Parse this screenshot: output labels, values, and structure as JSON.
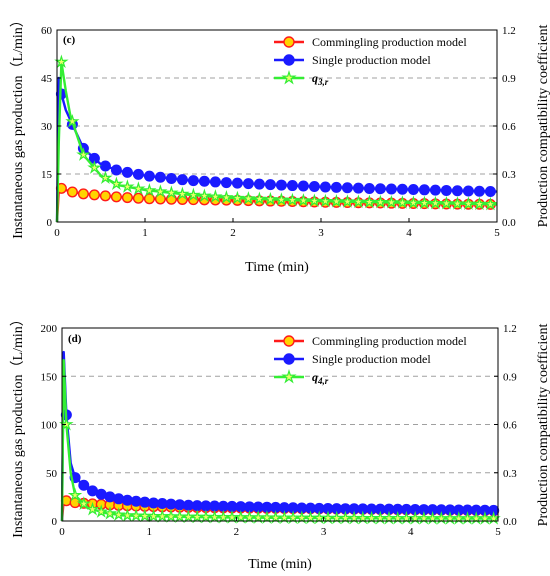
{
  "colors": {
    "commingling": "#ff1a1a",
    "commingling_fill": "#ffd400",
    "single": "#1a1aff",
    "ratio": "#33ee33",
    "ratio_fill": "#eaff6a",
    "grid": "#a0a0a0"
  },
  "chart_data": [
    {
      "type": "line",
      "panel_label": "(c)",
      "xlabel": "Time (min)",
      "ylabel": "Instantaneous gas production（L/min）",
      "y2label": "Production compatibility coefficient",
      "xlim": [
        0,
        5
      ],
      "ylim": [
        0,
        60
      ],
      "y2lim": [
        0,
        1.2
      ],
      "x_ticks": [
        "0",
        "1",
        "2",
        "3",
        "4",
        "5"
      ],
      "y_ticks": [
        "0",
        "15",
        "30",
        "45",
        "60"
      ],
      "y2_ticks": [
        "0.0",
        "0.3",
        "0.6",
        "0.9",
        "1.2"
      ],
      "grid": "horizontal dashed at 15, 30, 45",
      "legend_position": "top-right",
      "series": [
        {
          "name": "Commingling production model",
          "axis": "left",
          "marker": "circle",
          "x": [
            0,
            0.02,
            0.05,
            0.1,
            0.15,
            0.3,
            0.5,
            0.7,
            1,
            1.5,
            2,
            2.5,
            3,
            3.5,
            4,
            4.5,
            5
          ],
          "y": [
            0,
            10,
            10.5,
            10,
            9.5,
            8.8,
            8.3,
            7.8,
            7.3,
            7,
            6.8,
            6.5,
            6.2,
            6,
            5.8,
            5.6,
            5.5
          ]
        },
        {
          "name": "Single production model",
          "axis": "left",
          "marker": "circle",
          "x": [
            0,
            0.02,
            0.05,
            0.1,
            0.15,
            0.3,
            0.5,
            0.7,
            1,
            1.5,
            2,
            2.5,
            3,
            3.5,
            4,
            4.5,
            5
          ],
          "y": [
            0,
            45,
            40,
            35,
            32,
            23,
            18,
            16,
            14.5,
            13,
            12.2,
            11.6,
            11,
            10.5,
            10.2,
            9.8,
            9.5
          ]
        },
        {
          "name": "q3,r",
          "name_parts": [
            "q",
            "3,r"
          ],
          "axis": "right",
          "marker": "star",
          "x": [
            0,
            0.02,
            0.05,
            0.1,
            0.15,
            0.3,
            0.5,
            0.7,
            1,
            1.5,
            2,
            2.5,
            3,
            3.5,
            4,
            4.5,
            5
          ],
          "y": [
            0,
            0.5,
            1.0,
            0.82,
            0.67,
            0.42,
            0.29,
            0.23,
            0.2,
            0.17,
            0.15,
            0.14,
            0.13,
            0.125,
            0.12,
            0.115,
            0.11
          ]
        }
      ]
    },
    {
      "type": "line",
      "panel_label": "(d)",
      "xlabel": "Time (min)",
      "ylabel": "Instantaneous gas production（L/min）",
      "y2label": "Production compatibility coefficient",
      "xlim": [
        0,
        5
      ],
      "ylim": [
        0,
        200
      ],
      "y2lim": [
        0,
        1.2
      ],
      "x_ticks": [
        "0",
        "1",
        "2",
        "3",
        "4",
        "5"
      ],
      "y_ticks": [
        "0",
        "50",
        "100",
        "150",
        "200"
      ],
      "y2_ticks": [
        "0.0",
        "0.3",
        "0.6",
        "0.9",
        "1.2"
      ],
      "grid": "horizontal dashed at 50, 100, 150",
      "legend_position": "top-right",
      "series": [
        {
          "name": "Commingling production model",
          "axis": "left",
          "marker": "circle",
          "x": [
            0,
            0.02,
            0.05,
            0.1,
            0.15,
            0.3,
            0.5,
            0.7,
            1,
            1.5,
            2,
            2.5,
            3,
            3.5,
            4,
            4.5,
            5
          ],
          "y": [
            0,
            22,
            21,
            20,
            19,
            18,
            17,
            16,
            15,
            14,
            13.5,
            13,
            12.5,
            12,
            11.5,
            11,
            10.5
          ]
        },
        {
          "name": "Single production model",
          "axis": "left",
          "marker": "circle",
          "x": [
            0,
            0.02,
            0.05,
            0.1,
            0.15,
            0.3,
            0.5,
            0.7,
            1,
            1.5,
            2,
            2.5,
            3,
            3.5,
            4,
            4.5,
            5
          ],
          "y": [
            0,
            175,
            110,
            60,
            45,
            33,
            26,
            22,
            19,
            16,
            15,
            14,
            13,
            12.5,
            12,
            11.5,
            11
          ]
        },
        {
          "name": "q4,r",
          "name_parts": [
            "q",
            "4,r"
          ],
          "axis": "right",
          "marker": "star",
          "x": [
            0,
            0.02,
            0.05,
            0.1,
            0.15,
            0.3,
            0.5,
            0.7,
            1,
            1.5,
            2,
            2.5,
            3,
            3.5,
            4,
            4.5,
            5
          ],
          "y": [
            0,
            1.0,
            0.6,
            0.3,
            0.16,
            0.08,
            0.05,
            0.035,
            0.03,
            0.025,
            0.022,
            0.02,
            0.018,
            0.017,
            0.016,
            0.015,
            0.015
          ]
        }
      ]
    }
  ]
}
